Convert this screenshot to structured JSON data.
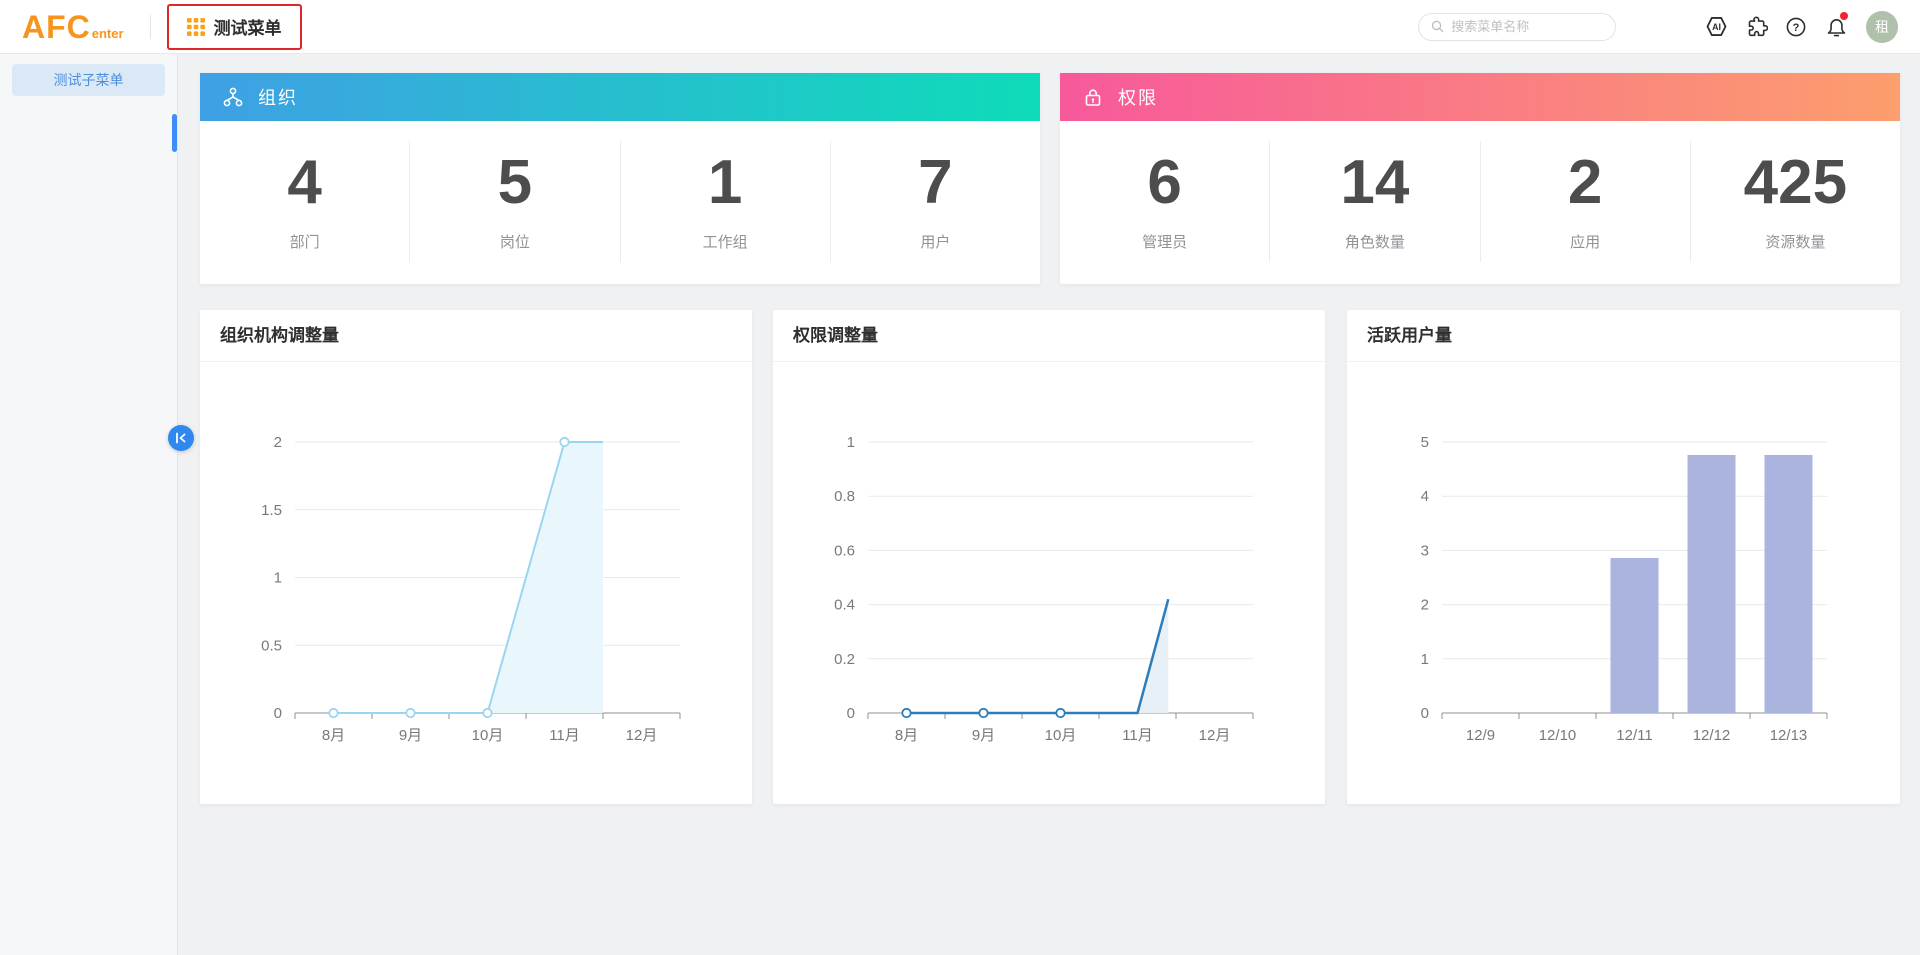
{
  "topbar": {
    "logo_main": "AFC",
    "logo_sub": "enter",
    "menu_label": "测试菜单",
    "search_placeholder": "搜索菜单名称",
    "avatar_text": "租",
    "icons": [
      "ai-icon",
      "plugin-icon",
      "help-icon",
      "bell-icon"
    ],
    "highlight_color": "#E02626",
    "brand_color": "#F7941E",
    "notification_dot_color": "#F5222D"
  },
  "sidebar": {
    "items": [
      {
        "label": "测试子菜单",
        "active": true
      }
    ],
    "active_bg": "#DBE9F7",
    "active_text": "#4E8FDC",
    "indicator_color": "#3E8EF7"
  },
  "stat_cards": [
    {
      "title": "组织",
      "icon": "org-chart-icon",
      "gradient": [
        "#3FA0E4",
        "#0EDCB9"
      ],
      "stats": [
        {
          "value": "4",
          "label": "部门"
        },
        {
          "value": "5",
          "label": "岗位"
        },
        {
          "value": "1",
          "label": "工作组"
        },
        {
          "value": "7",
          "label": "用户"
        }
      ]
    },
    {
      "title": "权限",
      "icon": "lock-icon",
      "gradient": [
        "#F7599B",
        "#FC9E6D"
      ],
      "stats": [
        {
          "value": "6",
          "label": "管理员"
        },
        {
          "value": "14",
          "label": "角色数量"
        },
        {
          "value": "2",
          "label": "应用"
        },
        {
          "value": "425",
          "label": "资源数量"
        }
      ]
    }
  ],
  "chart_data": [
    {
      "type": "area",
      "title": "组织机构调整量",
      "categories": [
        "8月",
        "9月",
        "10月",
        "11月",
        "12月"
      ],
      "values": [
        0,
        0,
        0,
        2,
        null
      ],
      "ylim": [
        0,
        2
      ],
      "yticks": [
        0,
        0.5,
        1,
        1.5,
        2
      ],
      "grid": true,
      "legend": "none",
      "line_color": "#9BD5EF",
      "fill_color": "#E9F7FD",
      "line_width": 2,
      "line_points": [
        [
          0.5,
          0
        ],
        [
          1.5,
          0
        ],
        [
          2.5,
          0
        ],
        [
          3.5,
          2
        ],
        [
          4.0,
          2
        ]
      ],
      "marker_points": [
        [
          0.5,
          0
        ],
        [
          1.5,
          0
        ],
        [
          2.5,
          0
        ],
        [
          3.5,
          2
        ]
      ]
    },
    {
      "type": "area",
      "title": "权限调整量",
      "categories": [
        "8月",
        "9月",
        "10月",
        "11月",
        "12月"
      ],
      "values": [
        0,
        0,
        0,
        0,
        null
      ],
      "ylim": [
        0,
        1
      ],
      "yticks": [
        0,
        0.2,
        0.4,
        0.6,
        0.8,
        1
      ],
      "grid": true,
      "legend": "none",
      "line_color": "#2E7CB8",
      "fill_color": "#E7EFF7",
      "line_width": 2.5,
      "line_points": [
        [
          0.5,
          0
        ],
        [
          1.5,
          0
        ],
        [
          2.5,
          0
        ],
        [
          3.5,
          0
        ],
        [
          3.9,
          0.42
        ]
      ],
      "marker_points": [
        [
          0.5,
          0
        ],
        [
          1.5,
          0
        ],
        [
          2.5,
          0
        ]
      ]
    },
    {
      "type": "bar",
      "title": "活跃用户量",
      "categories": [
        "12/9",
        "12/10",
        "12/11",
        "12/12",
        "12/13"
      ],
      "values": [
        0,
        0,
        2.86,
        4.76,
        4.76
      ],
      "ylim": [
        0,
        5
      ],
      "yticks": [
        0,
        1,
        2,
        3,
        4,
        5
      ],
      "grid": true,
      "legend": "none",
      "bar_color": "#ABB3DF"
    }
  ],
  "chart_style": {
    "gridline_color": "#E8E9EB",
    "axis_color": "#8C9196",
    "tick_label_color": "#76797E"
  }
}
